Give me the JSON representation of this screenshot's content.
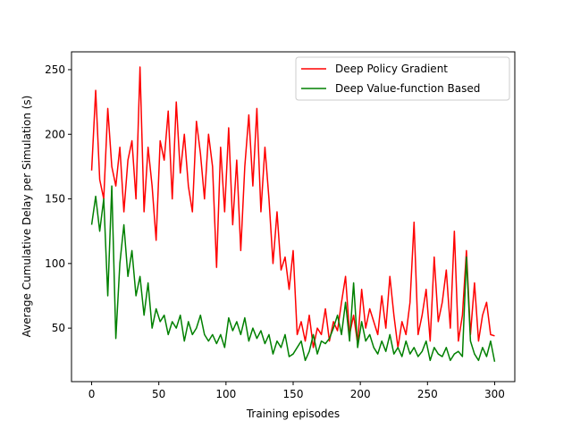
{
  "chart_data": {
    "type": "line",
    "x_label": "Training episodes",
    "y_label": "Average Cumulative Delay per Simulation (s)",
    "x": [
      0,
      3,
      6,
      9,
      12,
      15,
      18,
      21,
      24,
      27,
      30,
      33,
      36,
      39,
      42,
      45,
      48,
      51,
      54,
      57,
      60,
      63,
      66,
      69,
      72,
      75,
      78,
      81,
      84,
      87,
      90,
      93,
      96,
      99,
      102,
      105,
      108,
      111,
      114,
      117,
      120,
      123,
      126,
      129,
      132,
      135,
      138,
      141,
      144,
      147,
      150,
      153,
      156,
      159,
      162,
      165,
      168,
      171,
      174,
      177,
      180,
      183,
      186,
      189,
      192,
      195,
      198,
      201,
      204,
      207,
      210,
      213,
      216,
      219,
      222,
      225,
      228,
      231,
      234,
      237,
      240,
      243,
      246,
      249,
      252,
      255,
      258,
      261,
      264,
      267,
      270,
      273,
      276,
      279,
      282,
      285,
      288,
      291,
      294,
      297,
      300
    ],
    "series": [
      {
        "name": "Deep Policy Gradient",
        "color": "#ff0000",
        "values": [
          172,
          234,
          165,
          150,
          220,
          175,
          160,
          190,
          140,
          180,
          195,
          150,
          252,
          140,
          190,
          160,
          118,
          195,
          180,
          218,
          150,
          225,
          170,
          200,
          160,
          140,
          210,
          185,
          150,
          200,
          175,
          97,
          190,
          140,
          205,
          130,
          180,
          110,
          175,
          215,
          160,
          220,
          140,
          190,
          150,
          100,
          140,
          95,
          105,
          80,
          110,
          45,
          55,
          40,
          60,
          35,
          50,
          45,
          65,
          40,
          55,
          48,
          70,
          90,
          45,
          60,
          38,
          80,
          50,
          65,
          55,
          45,
          75,
          50,
          90,
          60,
          35,
          55,
          45,
          70,
          132,
          45,
          60,
          80,
          40,
          105,
          55,
          70,
          95,
          50,
          125,
          40,
          60,
          110,
          45,
          85,
          40,
          60,
          70,
          45,
          44
        ]
      },
      {
        "name": "Deep Value-function Based",
        "color": "#008000",
        "values": [
          130,
          152,
          125,
          150,
          75,
          160,
          42,
          100,
          130,
          90,
          110,
          75,
          90,
          60,
          85,
          50,
          65,
          55,
          60,
          45,
          55,
          50,
          60,
          40,
          55,
          45,
          50,
          60,
          45,
          40,
          45,
          38,
          45,
          35,
          58,
          48,
          55,
          45,
          58,
          40,
          50,
          42,
          48,
          38,
          45,
          30,
          40,
          35,
          45,
          28,
          30,
          35,
          40,
          25,
          32,
          45,
          30,
          40,
          38,
          42,
          50,
          60,
          45,
          70,
          40,
          85,
          35,
          55,
          40,
          45,
          35,
          30,
          40,
          32,
          45,
          30,
          35,
          28,
          40,
          30,
          35,
          28,
          32,
          40,
          25,
          35,
          30,
          28,
          35,
          25,
          30,
          32,
          28,
          105,
          40,
          30,
          25,
          35,
          28,
          40,
          24
        ]
      }
    ],
    "xlim": [
      -15,
      315
    ],
    "ylim": [
      8.6,
      263.8
    ],
    "xticks": [
      0,
      50,
      100,
      150,
      200,
      250,
      300
    ],
    "yticks": [
      50,
      100,
      150,
      200,
      250
    ],
    "legend": "upper right"
  }
}
